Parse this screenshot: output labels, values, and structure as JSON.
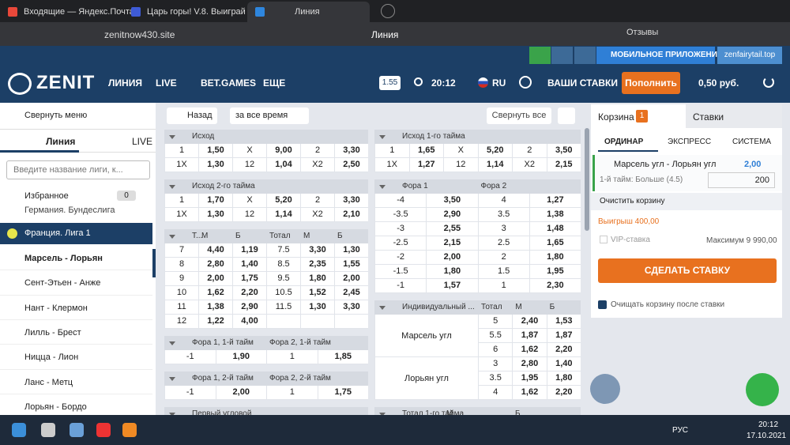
{
  "browser": {
    "tabs": [
      "Входящие — Яндекс.Почта",
      "Царь горы! V.8. Выиграй",
      "Линия"
    ],
    "url": "zenitnow430.site",
    "page_title": "Линия",
    "reviews": "Отзывы"
  },
  "promo": {
    "app": "МОБИЛЬНОЕ ПРИЛОЖЕНИЕ",
    "mirror": "zenfairytail.top"
  },
  "nav": {
    "logo": "ZENIT",
    "links": [
      "ЛИНИЯ",
      "LIVE",
      "BET.GAMES",
      "ЕЩЕ"
    ],
    "odds_format": "1.55",
    "time": "20:12",
    "lang": "RU",
    "my_bets": "ВАШИ СТАВКИ",
    "deposit": "Пополнить",
    "balance": "0,50 руб."
  },
  "sidebar": {
    "collapse": "Свернуть меню",
    "tabs": [
      "Линия",
      "LIVE"
    ],
    "search_placeholder": "Введите название лиги, к...",
    "favorites": "Избранное",
    "favorites_count": 0,
    "leagues": [
      "Германия. Бундеслига",
      "Франция. Лига 1"
    ],
    "matches": [
      "Марсель - Лорьян",
      "Сент-Этьен - Анже",
      "Нант - Клермон",
      "Лилль - Брест",
      "Ницца - Лион",
      "Ланс - Метц",
      "Лорьян - Бордо"
    ]
  },
  "toolbar": {
    "back": "Назад",
    "period": "за все время",
    "collapse_all": "Свернуть все"
  },
  "markets": {
    "left": [
      {
        "header": [
          "Исход"
        ],
        "rows": [
          [
            "1",
            "1,50",
            "X",
            "9,00",
            "2",
            "3,30"
          ],
          [
            "1X",
            "1,30",
            "12",
            "1,04",
            "X2",
            "2,50"
          ]
        ]
      },
      {
        "header": [
          "Исход 2-го тайма"
        ],
        "rows": [
          [
            "1",
            "1,70",
            "X",
            "5,20",
            "2",
            "3,30"
          ],
          [
            "1X",
            "1,30",
            "12",
            "1,14",
            "X2",
            "2,10"
          ]
        ]
      },
      {
        "header": [
          "Т...",
          "М",
          "Б",
          "Тотал",
          "М",
          "Б"
        ],
        "rows": [
          [
            "7",
            "4,40",
            "1,19",
            "7.5",
            "3,30",
            "1,30"
          ],
          [
            "8",
            "2,80",
            "1,40",
            "8.5",
            "2,35",
            "1,55"
          ],
          [
            "9",
            "2,00",
            "1,75",
            "9.5",
            "1,80",
            "2,00"
          ],
          [
            "10",
            "1,62",
            "2,20",
            "10.5",
            "1,52",
            "2,45"
          ],
          [
            "11",
            "1,38",
            "2,90",
            "11.5",
            "1,30",
            "3,30"
          ],
          [
            "12",
            "1,22",
            "4,00"
          ]
        ]
      },
      {
        "header": [
          "Фора 1, 1-й тайм",
          "Фора 2, 1-й тайм"
        ],
        "rows": [
          [
            "-1",
            "1,90",
            "1",
            "1,85"
          ]
        ]
      },
      {
        "header": [
          "Фора 1, 2-й тайм",
          "Фора 2, 2-й тайм"
        ],
        "rows": [
          [
            "-1",
            "2,00",
            "1",
            "1,75"
          ]
        ]
      },
      {
        "header": [
          "Первый угловой"
        ],
        "rows": []
      }
    ],
    "right": [
      {
        "header": [
          "Исход 1-го тайма"
        ],
        "rows": [
          [
            "1",
            "1,65",
            "X",
            "5,20",
            "2",
            "3,50"
          ],
          [
            "1X",
            "1,27",
            "12",
            "1,14",
            "X2",
            "2,15"
          ]
        ]
      },
      {
        "header": [
          "Фора 1",
          "Фора 2"
        ],
        "rows": [
          [
            "-4",
            "3,50",
            "4",
            "1,27"
          ],
          [
            "-3.5",
            "2,90",
            "3.5",
            "1,38"
          ],
          [
            "-3",
            "2,55",
            "3",
            "1,48"
          ],
          [
            "-2.5",
            "2,15",
            "2.5",
            "1,65"
          ],
          [
            "-2",
            "2,00",
            "2",
            "1,80"
          ],
          [
            "-1.5",
            "1,80",
            "1.5",
            "1,95"
          ],
          [
            "-1",
            "1,57",
            "1",
            "2,30"
          ]
        ]
      },
      {
        "header": [
          "Индивидуальный ...",
          "Тотал",
          "М",
          "Б"
        ],
        "groups": [
          {
            "name": "Марсель угл",
            "rows": [
              [
                "5",
                "2,40",
                "1,53"
              ],
              [
                "5.5",
                "1,87",
                "1,87"
              ],
              [
                "6",
                "1,62",
                "2,20"
              ]
            ]
          },
          {
            "name": "Лорьян угл",
            "rows": [
              [
                "3",
                "2,80",
                "1,40"
              ],
              [
                "3.5",
                "1,95",
                "1,80"
              ],
              [
                "4",
                "1,62",
                "2,20"
              ]
            ]
          }
        ]
      },
      {
        "header": [
          "Тотал 1-го тайма",
          "М",
          "Б"
        ],
        "rows": []
      }
    ]
  },
  "betslip": {
    "tabs": [
      "Корзина",
      "Ставки"
    ],
    "count": 1,
    "modes": [
      "ОРДИНАР",
      "ЭКСПРЕСС",
      "СИСТЕМА"
    ],
    "bet": {
      "event": "Марсель угл - Лорьян угл",
      "odds": "2,00",
      "market": "1-й тайм: Больше (4.5)",
      "stake": 200
    },
    "clear": "Очистить корзину",
    "win": "Выигрыш 400,00",
    "vip": "VIP-ставка",
    "max": "Максимум 9 990,00",
    "submit": "СДЕЛАТЬ СТАВКУ",
    "clear_after": "Очищать корзину после ставки"
  },
  "taskbar": {
    "lang": "РУС",
    "time": "20:12",
    "date": "17.10.2021"
  }
}
